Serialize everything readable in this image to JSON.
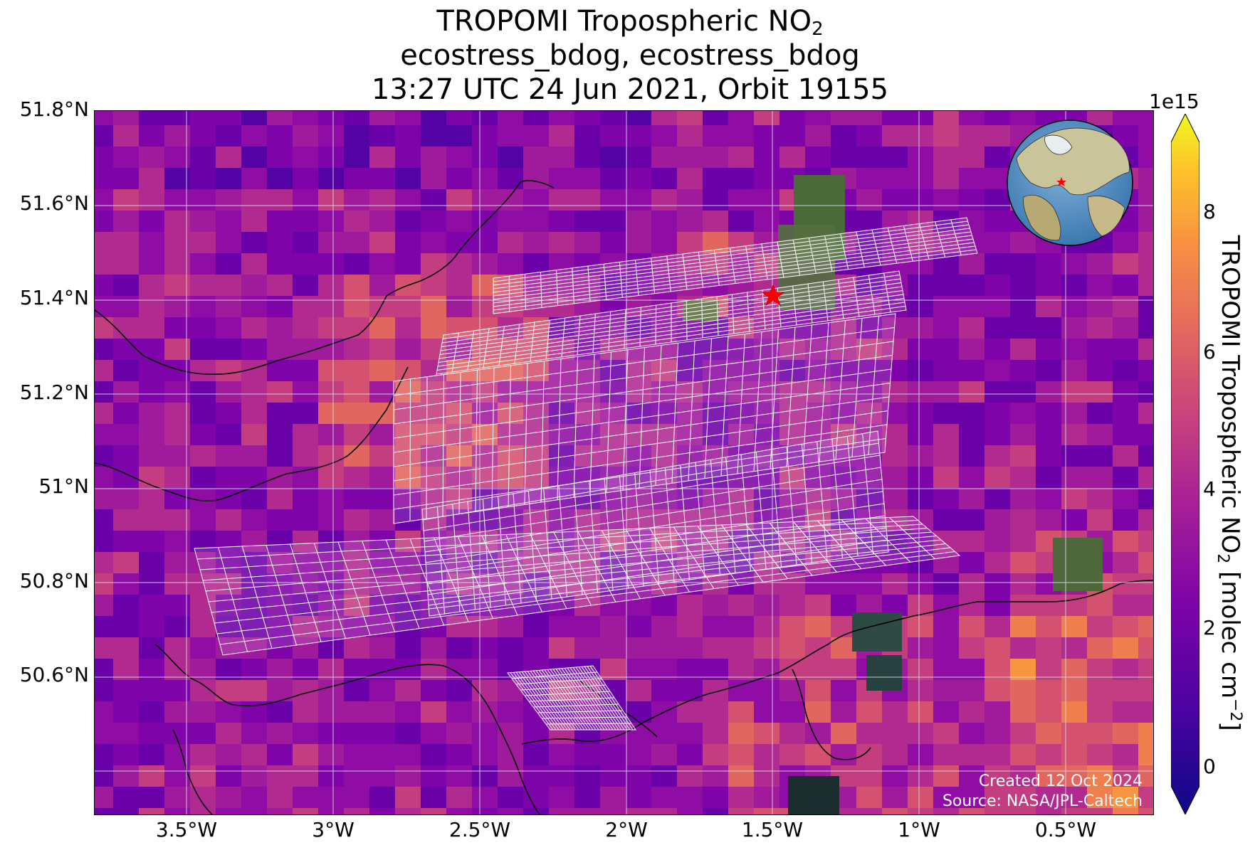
{
  "title": {
    "line1_main": "TROPOMI Tropospheric NO",
    "line1_sub": "2",
    "line2": "ecostress_bdog, ecostress_bdog",
    "line3": "13:27 UTC 24 Jun 2021, Orbit 19155"
  },
  "map": {
    "lat_labels": [
      "51.8°N",
      "51.6°N",
      "51.4°N",
      "51.2°N",
      "51°N",
      "50.8°N",
      "50.6°N"
    ],
    "lon_labels": [
      "3.5°W",
      "3°W",
      "2.5°W",
      "2°W",
      "1.5°W",
      "1°W",
      "0.5°W"
    ],
    "target_marker": "red-star",
    "inset": "globe-locator"
  },
  "colorbar": {
    "exponent": "1e15",
    "ticks": [
      "8",
      "6",
      "4",
      "2",
      "0"
    ],
    "label_main": "TROPOMI Tropospheric NO",
    "label_sub": "2",
    "label_units": " [molec cm",
    "label_sup": "−2",
    "label_end": "]",
    "colormap": "plasma"
  },
  "credit": {
    "line1": "Created 12 Oct 2024",
    "line2": "Source: NASA/JPL-Caltech"
  }
}
